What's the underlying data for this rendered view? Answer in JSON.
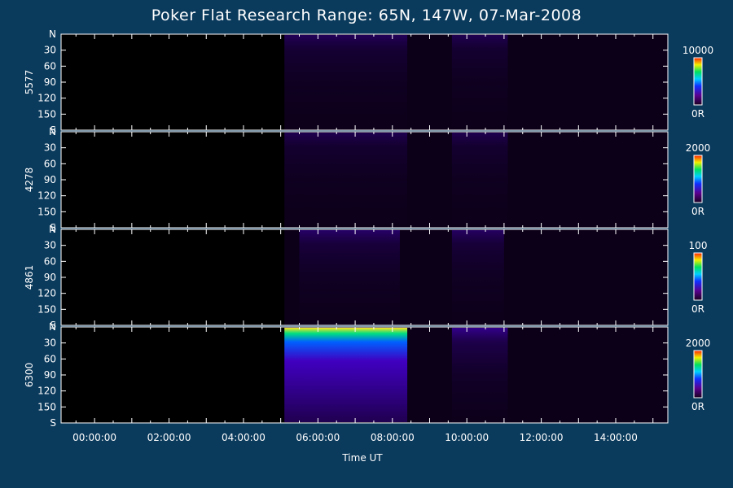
{
  "chart_data": {
    "type": "heatmap",
    "title": "Poker Flat Research Range: 65N, 147W, 07-Mar-2008",
    "xlabel": "Time UT",
    "x_ticks": [
      "00:00:00",
      "02:00:00",
      "04:00:00",
      "06:00:00",
      "08:00:00",
      "10:00:00",
      "12:00:00",
      "14:00:00"
    ],
    "x_tick_hours": [
      0,
      2,
      4,
      6,
      8,
      10,
      12,
      14
    ],
    "xlim_hours": [
      -0.9,
      15.4
    ],
    "data_start_hour": 5.1,
    "y_ticks": [
      "N",
      "30",
      "60",
      "90",
      "120",
      "150",
      "S"
    ],
    "ylim_deg": [
      0,
      180
    ],
    "panels": [
      {
        "ylabel": "5577",
        "colorbar_max": "10000",
        "colorbar_min": "0R",
        "features": [
          {
            "t_start": 5.1,
            "t_end": 8.4,
            "intensity": 0.18
          },
          {
            "t_start": 9.6,
            "t_end": 11.1,
            "intensity": 0.12
          }
        ]
      },
      {
        "ylabel": "4278",
        "colorbar_max": "2000",
        "colorbar_min": "0R",
        "features": [
          {
            "t_start": 5.1,
            "t_end": 8.4,
            "intensity": 0.1
          },
          {
            "t_start": 9.6,
            "t_end": 11.1,
            "intensity": 0.1
          }
        ]
      },
      {
        "ylabel": "4861",
        "colorbar_max": "100",
        "colorbar_min": "0R",
        "features": [
          {
            "t_start": 5.5,
            "t_end": 8.2,
            "intensity": 0.3
          },
          {
            "t_start": 9.6,
            "t_end": 11.0,
            "intensity": 0.25
          }
        ]
      },
      {
        "ylabel": "6300",
        "colorbar_max": "2000",
        "colorbar_min": "0R",
        "features": [
          {
            "t_start": 5.1,
            "t_end": 8.4,
            "intensity": 0.8
          },
          {
            "t_start": 9.6,
            "t_end": 11.1,
            "intensity": 0.6
          }
        ]
      }
    ]
  }
}
